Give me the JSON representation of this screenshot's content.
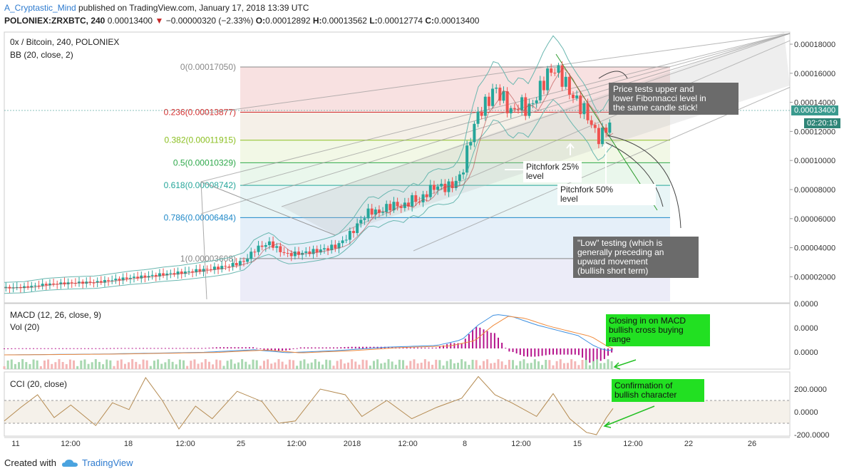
{
  "header": {
    "user": "A_Cryptastic_Mind",
    "published": " published on TradingView.com, January 17, 2018 13:39 UTC",
    "symbol": "POLONIEX:ZRXBTC, 240",
    "last": "0.00013400",
    "change": "−0.00000320 (−2.33%)",
    "o_label": "O:",
    "o": "0.00012892",
    "h_label": "H:",
    "h": "0.00013562",
    "l_label": "L:",
    "l": "0.00012774",
    "c_label": "C:",
    "c": "0.00013400"
  },
  "panes": {
    "main_title": "0x / Bitcoin, 240, POLONIEX",
    "bb": "BB (20, close, 2)",
    "macd": "MACD (12, 26, close, 9)",
    "vol": "Vol (20)",
    "cci": "CCI (20, close)"
  },
  "price_box": "0.00013400",
  "countdown": "02:20:19",
  "annotations": {
    "fib_test": "Price tests upper and\nlower Fibonnacci level in\nthe same candle stick!",
    "pf25": "Pitchfork 25%\nlevel",
    "pf50": "Pitchfork 50%\nlevel",
    "low_test": "\"Low\" testing (which is\ngenerally preceding an\nupward movement\n(bullish short term)",
    "macd_note": "Closing in on MACD\nbullish cross buying\nrange",
    "cci_note": "Confirmation of\nbullish character"
  },
  "footer": {
    "created": "Created with",
    "brand": "TradingView"
  },
  "colors": {
    "up": "#26a69a",
    "down": "#ef5350",
    "bb": "#6ab7b0",
    "macd": "#3d8fe0",
    "signal": "#f08a3c",
    "hist": "#b5148c",
    "cci": "#b48a50"
  },
  "chart_data": {
    "type": "candlestick",
    "x_ticks": [
      "11",
      "12:00",
      "18",
      "12:00",
      "25",
      "12:00",
      "2018",
      "12:00",
      "8",
      "12:00",
      "15",
      "12:00",
      "22",
      "26"
    ],
    "y_ticks": [
      "0.00018000",
      "0.00016000",
      "0.00014000",
      "0.00012000",
      "0.00010000",
      "0.00008000",
      "0.00006000",
      "0.00004000",
      "0.00002000"
    ],
    "ylim": [
      0,
      0.00019
    ],
    "fib_levels": [
      {
        "label": "0(0.00017050)",
        "value": 0.0001705,
        "color": "#888888"
      },
      {
        "label": "0.236(0.00013877)",
        "value": 0.00013877,
        "color": "#d32f2f"
      },
      {
        "label": "0.382(0.00011915)",
        "value": 0.00011915,
        "color": "#8bbf20"
      },
      {
        "label": "0.5(0.00010329)",
        "value": 0.00010329,
        "color": "#2ea84a"
      },
      {
        "label": "0.618(0.00008742)",
        "value": 8.742e-05,
        "color": "#26a69a"
      },
      {
        "label": "0.786(0.00006484)",
        "value": 6.484e-05,
        "color": "#1e88c8"
      },
      {
        "label": "1(0.00003608)",
        "value": 3.608e-05,
        "color": "#888888"
      }
    ],
    "close_path": [
      [
        0,
        1.55e-05
      ],
      [
        12,
        1.6e-05
      ],
      [
        25,
        1.8e-05
      ],
      [
        40,
        1.9e-05
      ],
      [
        55,
        1.95e-05
      ],
      [
        65,
        2.1e-05
      ],
      [
        75,
        2.25e-05
      ],
      [
        85,
        2.35e-05
      ],
      [
        95,
        2.5e-05
      ],
      [
        105,
        2.6e-05
      ],
      [
        115,
        2.75e-05
      ],
      [
        125,
        2.9e-05
      ],
      [
        135,
        3.1e-05
      ],
      [
        145,
        3.45e-05
      ],
      [
        150,
        4.2e-05
      ],
      [
        155,
        4.5e-05
      ],
      [
        160,
        4.7e-05
      ],
      [
        165,
        4.2e-05
      ],
      [
        170,
        3.9e-05
      ],
      [
        180,
        4e-05
      ],
      [
        190,
        4.2e-05
      ],
      [
        200,
        4.5e-05
      ],
      [
        205,
        5e-05
      ],
      [
        210,
        5.6e-05
      ],
      [
        215,
        6.4e-05
      ],
      [
        220,
        7e-05
      ],
      [
        225,
        6.8e-05
      ],
      [
        230,
        7.2e-05
      ],
      [
        235,
        7.4e-05
      ],
      [
        240,
        7.2e-05
      ],
      [
        245,
        7.8e-05
      ],
      [
        250,
        7.6e-05
      ],
      [
        255,
        8.4e-05
      ],
      [
        260,
        8.7e-05
      ],
      [
        265,
        8.6e-05
      ],
      [
        270,
        8.8e-05
      ],
      [
        275,
        9.5e-05
      ],
      [
        280,
        0.00012
      ],
      [
        285,
        0.000138
      ],
      [
        290,
        0.000145
      ],
      [
        295,
        0.000156
      ],
      [
        300,
        0.000148
      ],
      [
        305,
        0.000138
      ],
      [
        310,
        0.000145
      ],
      [
        315,
        0.00014
      ],
      [
        320,
        0.00015
      ],
      [
        325,
        0.000162
      ],
      [
        330,
        0.00017
      ],
      [
        335,
        0.000164
      ],
      [
        340,
        0.000153
      ],
      [
        345,
        0.000145
      ],
      [
        350,
        0.000138
      ],
      [
        355,
        0.000125
      ],
      [
        358,
        0.00012
      ],
      [
        362,
        0.000128
      ],
      [
        366,
        0.000134
      ]
    ],
    "macd_path": [
      [
        0,
        0.0
      ],
      [
        60,
        0.02
      ],
      [
        120,
        0.06
      ],
      [
        150,
        0.12
      ],
      [
        170,
        0.05
      ],
      [
        200,
        0.1
      ],
      [
        230,
        0.18
      ],
      [
        260,
        0.22
      ],
      [
        275,
        0.35
      ],
      [
        285,
        0.7
      ],
      [
        295,
        0.95
      ],
      [
        305,
        0.9
      ],
      [
        320,
        0.7
      ],
      [
        335,
        0.55
      ],
      [
        345,
        0.45
      ],
      [
        355,
        0.2
      ],
      [
        362,
        0.1
      ],
      [
        366,
        0.12
      ]
    ],
    "cci_path": [
      [
        0,
        -80
      ],
      [
        10,
        40
      ],
      [
        20,
        150
      ],
      [
        30,
        -50
      ],
      [
        40,
        60
      ],
      [
        55,
        -120
      ],
      [
        65,
        80
      ],
      [
        75,
        20
      ],
      [
        85,
        300
      ],
      [
        95,
        100
      ],
      [
        105,
        -150
      ],
      [
        115,
        50
      ],
      [
        125,
        -60
      ],
      [
        140,
        180
      ],
      [
        155,
        90
      ],
      [
        165,
        -100
      ],
      [
        175,
        -80
      ],
      [
        190,
        200
      ],
      [
        205,
        150
      ],
      [
        215,
        -40
      ],
      [
        230,
        100
      ],
      [
        245,
        -60
      ],
      [
        260,
        40
      ],
      [
        275,
        120
      ],
      [
        285,
        310
      ],
      [
        295,
        150
      ],
      [
        305,
        80
      ],
      [
        320,
        -40
      ],
      [
        330,
        160
      ],
      [
        340,
        -60
      ],
      [
        350,
        -180
      ],
      [
        356,
        -200
      ],
      [
        362,
        -50
      ],
      [
        366,
        30
      ]
    ]
  }
}
